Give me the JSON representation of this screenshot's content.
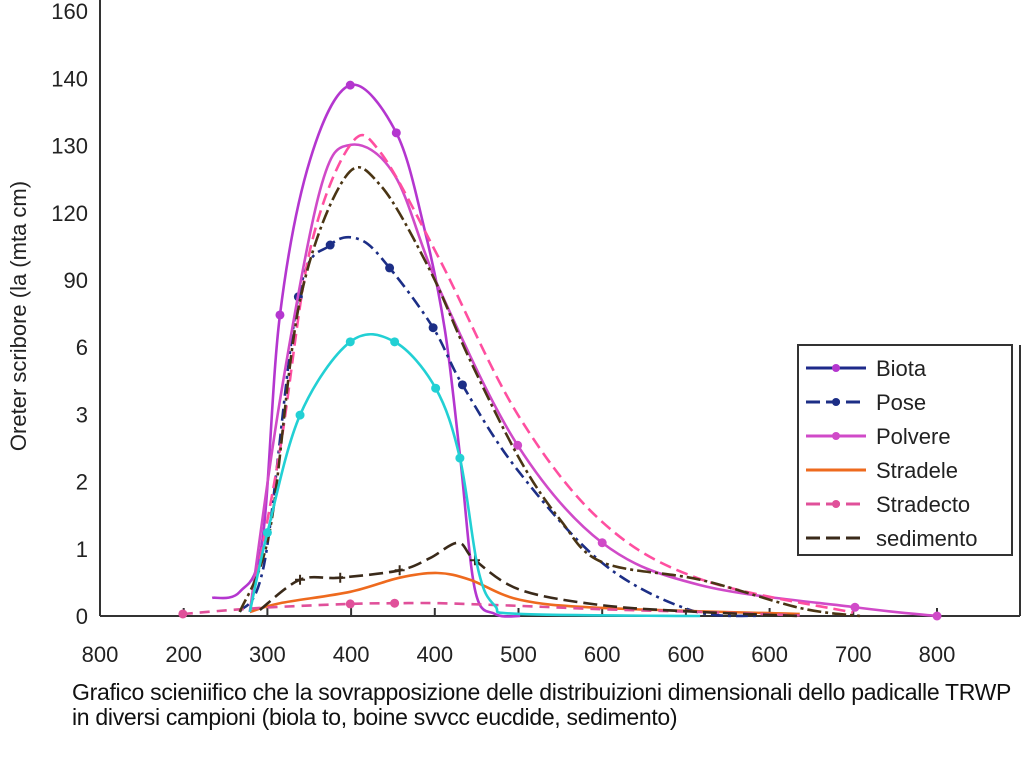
{
  "chart_data": {
    "type": "line",
    "ylabel": "Oreter scribore (la (mta cm)",
    "x_ticks": [
      "800",
      "200",
      "300",
      "400",
      "400",
      "500",
      "600",
      "600",
      "600",
      "700",
      "800"
    ],
    "y_ticks": [
      "0",
      "1",
      "2",
      "3",
      "6",
      "90",
      "120",
      "130",
      "140",
      "160"
    ],
    "value_units": "tick positions (x: index along x_ticks, y: index along y_ticks; tick labels are not monotonic)",
    "grid": false,
    "legend_position": "right",
    "series": [
      {
        "name": "Biota",
        "color": "#b436cf",
        "line_color": "#1e2a8a",
        "dash": "",
        "marker": "circle",
        "points": [
          [
            1.34,
            0.27
          ],
          [
            1.67,
            0.36
          ],
          [
            1.94,
            1.13
          ],
          [
            2.15,
            4.48
          ],
          [
            2.51,
            6.79
          ],
          [
            2.99,
            7.9
          ],
          [
            3.54,
            7.19
          ],
          [
            3.88,
            5.74
          ],
          [
            4.12,
            4.26
          ],
          [
            4.3,
            2.4
          ],
          [
            4.48,
            0.39
          ],
          [
            4.72,
            0.03
          ],
          [
            5.02,
            0
          ]
        ],
        "markers": [
          2.15,
          2.99,
          3.54
        ]
      },
      {
        "name": "Pose",
        "color": "#1c2e86",
        "dash": "12 5 3 5",
        "marker": "circle",
        "points": [
          [
            1.67,
            0.06
          ],
          [
            1.97,
            0.83
          ],
          [
            2.37,
            4.75
          ],
          [
            2.75,
            5.52
          ],
          [
            3.11,
            5.6
          ],
          [
            3.46,
            5.18
          ],
          [
            3.98,
            4.29
          ],
          [
            4.33,
            3.44
          ],
          [
            4.99,
            2.17
          ],
          [
            6.0,
            0.79
          ],
          [
            7.05,
            0.09
          ],
          [
            7.89,
            0
          ]
        ],
        "markers": [
          2.37,
          2.75,
          3.46,
          3.98,
          4.33
        ]
      },
      {
        "name": "Polvere",
        "color": "#d04ac8",
        "dash": "",
        "marker": "circle",
        "points": [
          [
            1.79,
            0.06
          ],
          [
            2.15,
            3.21
          ],
          [
            2.63,
            6.34
          ],
          [
            2.99,
            7.01
          ],
          [
            3.52,
            6.56
          ],
          [
            4.06,
            4.85
          ],
          [
            4.99,
            2.54
          ],
          [
            6.0,
            1.09
          ],
          [
            7.17,
            0.46
          ],
          [
            9.02,
            0.13
          ],
          [
            10.0,
            0
          ]
        ],
        "markers": [
          4.99,
          6.0,
          9.02,
          10.0
        ]
      },
      {
        "name": "Stradele",
        "color": "#ee6a1e",
        "dash": "",
        "marker": "none",
        "points": [
          [
            1.79,
            0.06
          ],
          [
            2.15,
            0.19
          ],
          [
            2.99,
            0.36
          ],
          [
            3.58,
            0.57
          ],
          [
            4.03,
            0.64
          ],
          [
            4.42,
            0.54
          ],
          [
            5.02,
            0.24
          ],
          [
            6.0,
            0.12
          ],
          [
            8.36,
            0.03
          ]
        ],
        "markers": []
      },
      {
        "name": "Stradecto",
        "color": "#e0509a",
        "dash": "10 7",
        "marker": "circle",
        "points": [
          [
            0.99,
            0.03
          ],
          [
            1.91,
            0.12
          ],
          [
            2.99,
            0.18
          ],
          [
            3.52,
            0.19
          ],
          [
            4.06,
            0.19
          ],
          [
            5.02,
            0.15
          ],
          [
            6.0,
            0.1
          ],
          [
            7.17,
            0.06
          ],
          [
            8.36,
            0.01
          ]
        ],
        "markers": [
          0.99,
          2.99,
          3.52
        ]
      },
      {
        "name": "sedimento",
        "color": "#3a2a1a",
        "dash": "14 6",
        "marker": "plus",
        "points": [
          [
            1.91,
            0.09
          ],
          [
            2.39,
            0.54
          ],
          [
            2.87,
            0.57
          ],
          [
            3.58,
            0.68
          ],
          [
            3.94,
            0.86
          ],
          [
            4.28,
            1.09
          ],
          [
            4.48,
            0.83
          ],
          [
            5.02,
            0.39
          ],
          [
            6.0,
            0.16
          ],
          [
            7.17,
            0.06
          ],
          [
            8.36,
            0
          ]
        ],
        "markers": [
          2.39,
          2.87,
          3.58,
          4.48
        ]
      },
      {
        "color": "#ff4fa0",
        "dash": "12 6",
        "marker": "none",
        "points": [
          [
            1.79,
            0.06
          ],
          [
            2.15,
            2.47
          ],
          [
            2.51,
            5.45
          ],
          [
            2.99,
            7.01
          ],
          [
            3.35,
            6.9
          ],
          [
            4.06,
            5.3
          ],
          [
            4.99,
            3.0
          ],
          [
            6.0,
            1.4
          ],
          [
            7.17,
            0.55
          ],
          [
            9.0,
            0.05
          ]
        ],
        "markers": []
      },
      {
        "color": "#4a3514",
        "dash": "14 4 3 4",
        "marker": "none",
        "points": [
          [
            1.67,
            0.06
          ],
          [
            2.03,
            1.28
          ],
          [
            2.39,
            4.7
          ],
          [
            2.93,
            6.53
          ],
          [
            3.35,
            6.41
          ],
          [
            3.94,
            5.15
          ],
          [
            4.42,
            3.81
          ],
          [
            5.02,
            2.32
          ],
          [
            5.5,
            1.43
          ],
          [
            6.0,
            0.8
          ],
          [
            7.17,
            0.54
          ],
          [
            8.36,
            0.12
          ],
          [
            9.08,
            0
          ]
        ],
        "markers": []
      },
      {
        "color": "#22d0d4",
        "dash": "",
        "marker": "circle",
        "points": [
          [
            1.79,
            0.06
          ],
          [
            2.0,
            1.24
          ],
          [
            2.39,
            2.99
          ],
          [
            2.99,
            4.08
          ],
          [
            3.52,
            4.08
          ],
          [
            4.01,
            3.39
          ],
          [
            4.3,
            2.35
          ],
          [
            4.52,
            0.68
          ],
          [
            4.72,
            0.15
          ],
          [
            5.02,
            0.03
          ],
          [
            7.17,
            0
          ]
        ],
        "markers": [
          2.0,
          2.39,
          2.99,
          3.52,
          4.01,
          4.3
        ]
      }
    ]
  },
  "caption": "Grafico scieniifico che la sovrapposizione delle distribuizioni dimensionali dello padicalle TRWP in diversi campioni (biola to, boine svvcc eucdide, sedimento)"
}
